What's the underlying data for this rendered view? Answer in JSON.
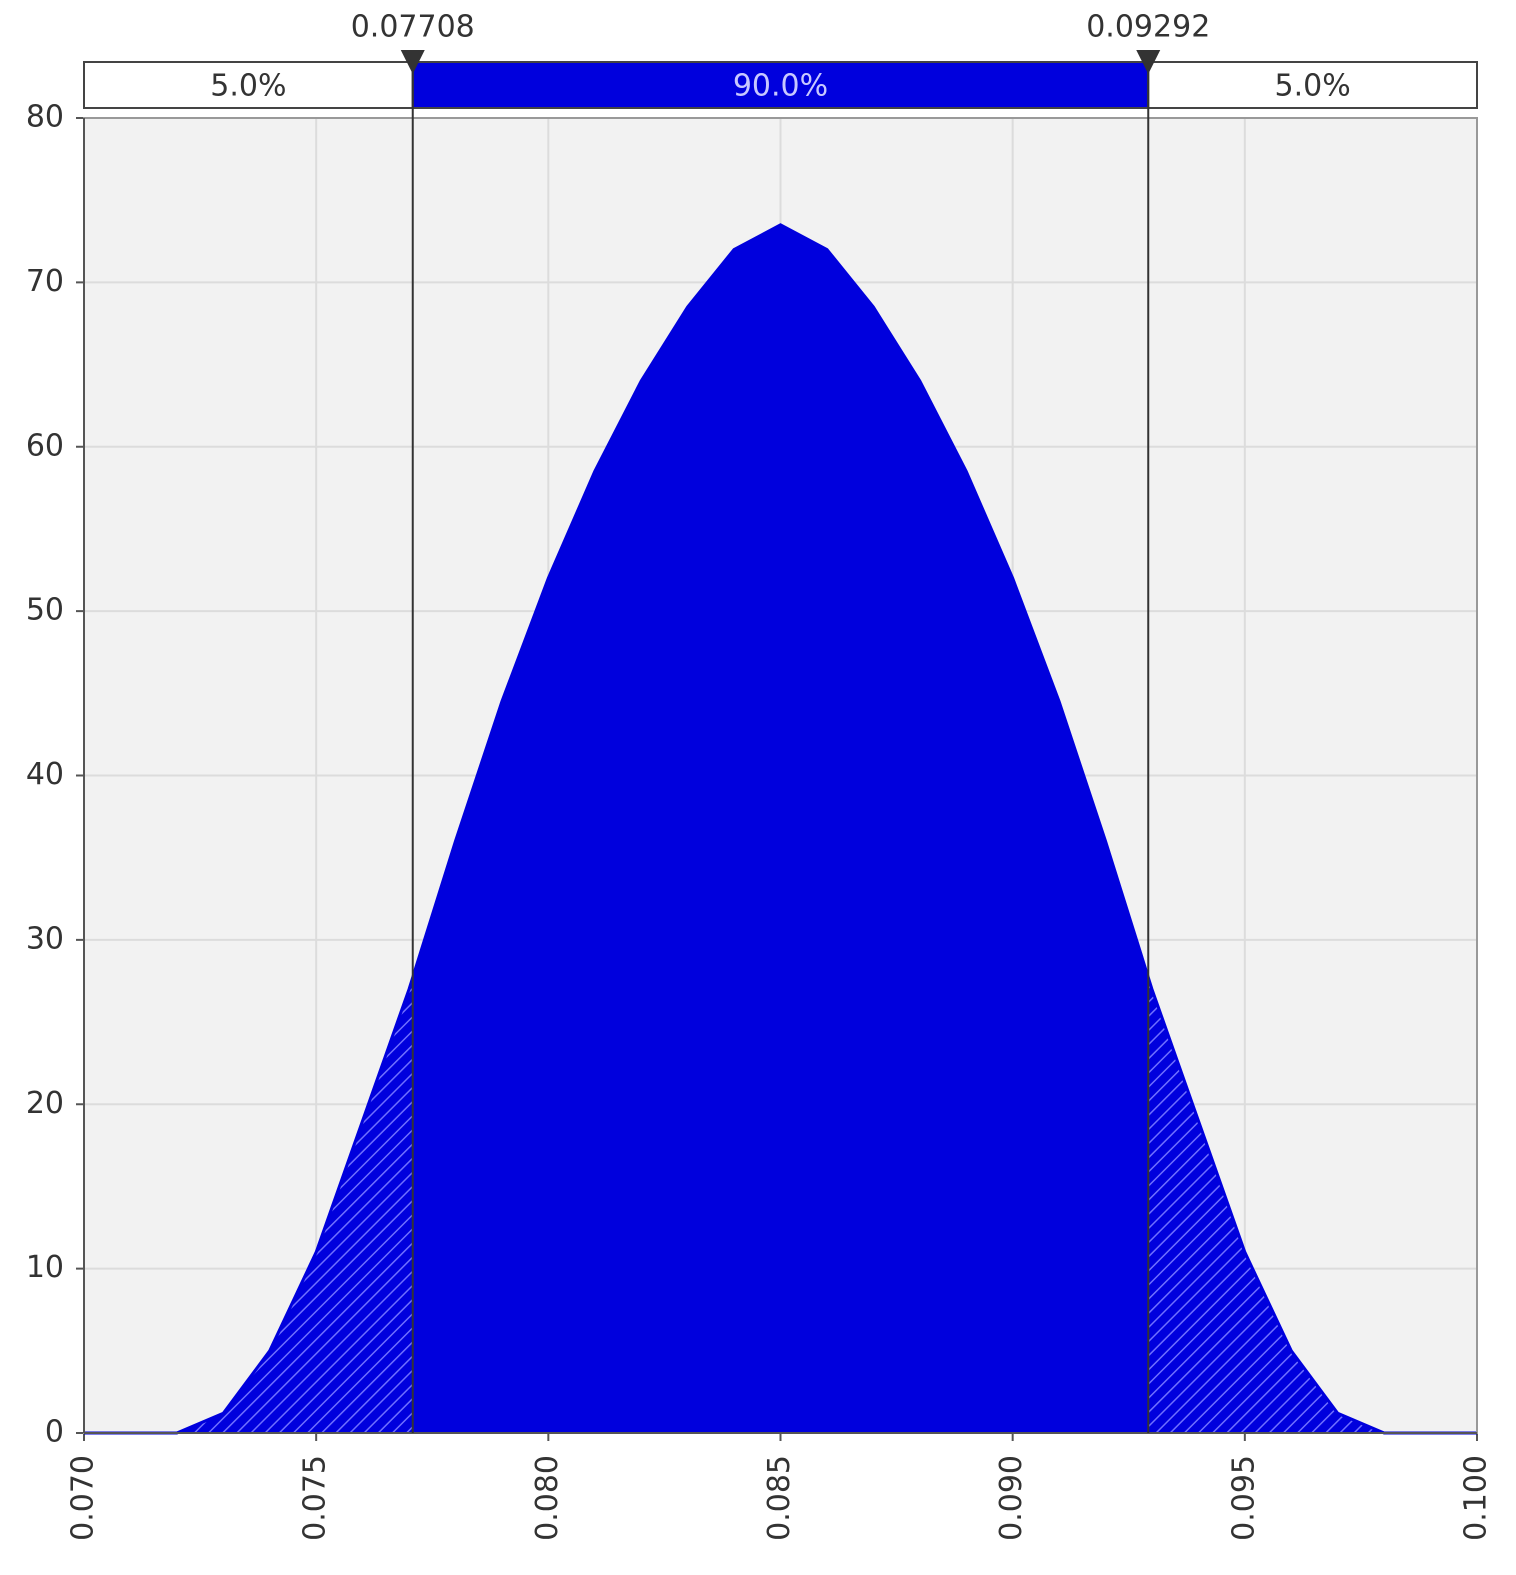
{
  "chart_data": {
    "type": "area",
    "x": [
      0.07,
      0.071,
      0.072,
      0.073,
      0.074,
      0.075,
      0.076,
      0.077,
      0.078,
      0.079,
      0.08,
      0.081,
      0.082,
      0.083,
      0.084,
      0.085,
      0.086,
      0.087,
      0.088,
      0.089,
      0.09,
      0.091,
      0.092,
      0.093,
      0.094,
      0.095,
      0.096,
      0.097,
      0.098,
      0.099,
      0.1
    ],
    "series": [
      {
        "color": "#0000dd",
        "values": [
          0,
          0,
          0,
          1.2,
          5,
          11,
          19,
          27,
          36,
          44.5,
          52,
          58.5,
          64,
          68.5,
          72,
          73.5,
          72,
          68.5,
          64,
          58.5,
          52,
          44.5,
          36,
          27,
          19,
          11,
          5,
          1.2,
          0,
          0,
          0
        ]
      }
    ],
    "xlim": [
      0.07,
      0.1
    ],
    "xticks": [
      {
        "value": 0.07,
        "label": "0.070"
      },
      {
        "value": 0.075,
        "label": "0.075"
      },
      {
        "value": 0.08,
        "label": "0.080"
      },
      {
        "value": 0.085,
        "label": "0.085"
      },
      {
        "value": 0.09,
        "label": "0.090"
      },
      {
        "value": 0.095,
        "label": "0.095"
      },
      {
        "value": 0.1,
        "label": "0.100"
      }
    ],
    "ylim": [
      0,
      80
    ],
    "yticks": [
      0,
      10,
      20,
      30,
      40,
      50,
      60,
      70,
      80
    ],
    "grid": true,
    "delimiters": [
      0.07708,
      0.09292
    ],
    "probability_bar": {
      "values": [
        5,
        90,
        5
      ],
      "value_labels": [
        "5.0%",
        "90.0%",
        "5.0%"
      ],
      "color": "#0000dd"
    }
  }
}
